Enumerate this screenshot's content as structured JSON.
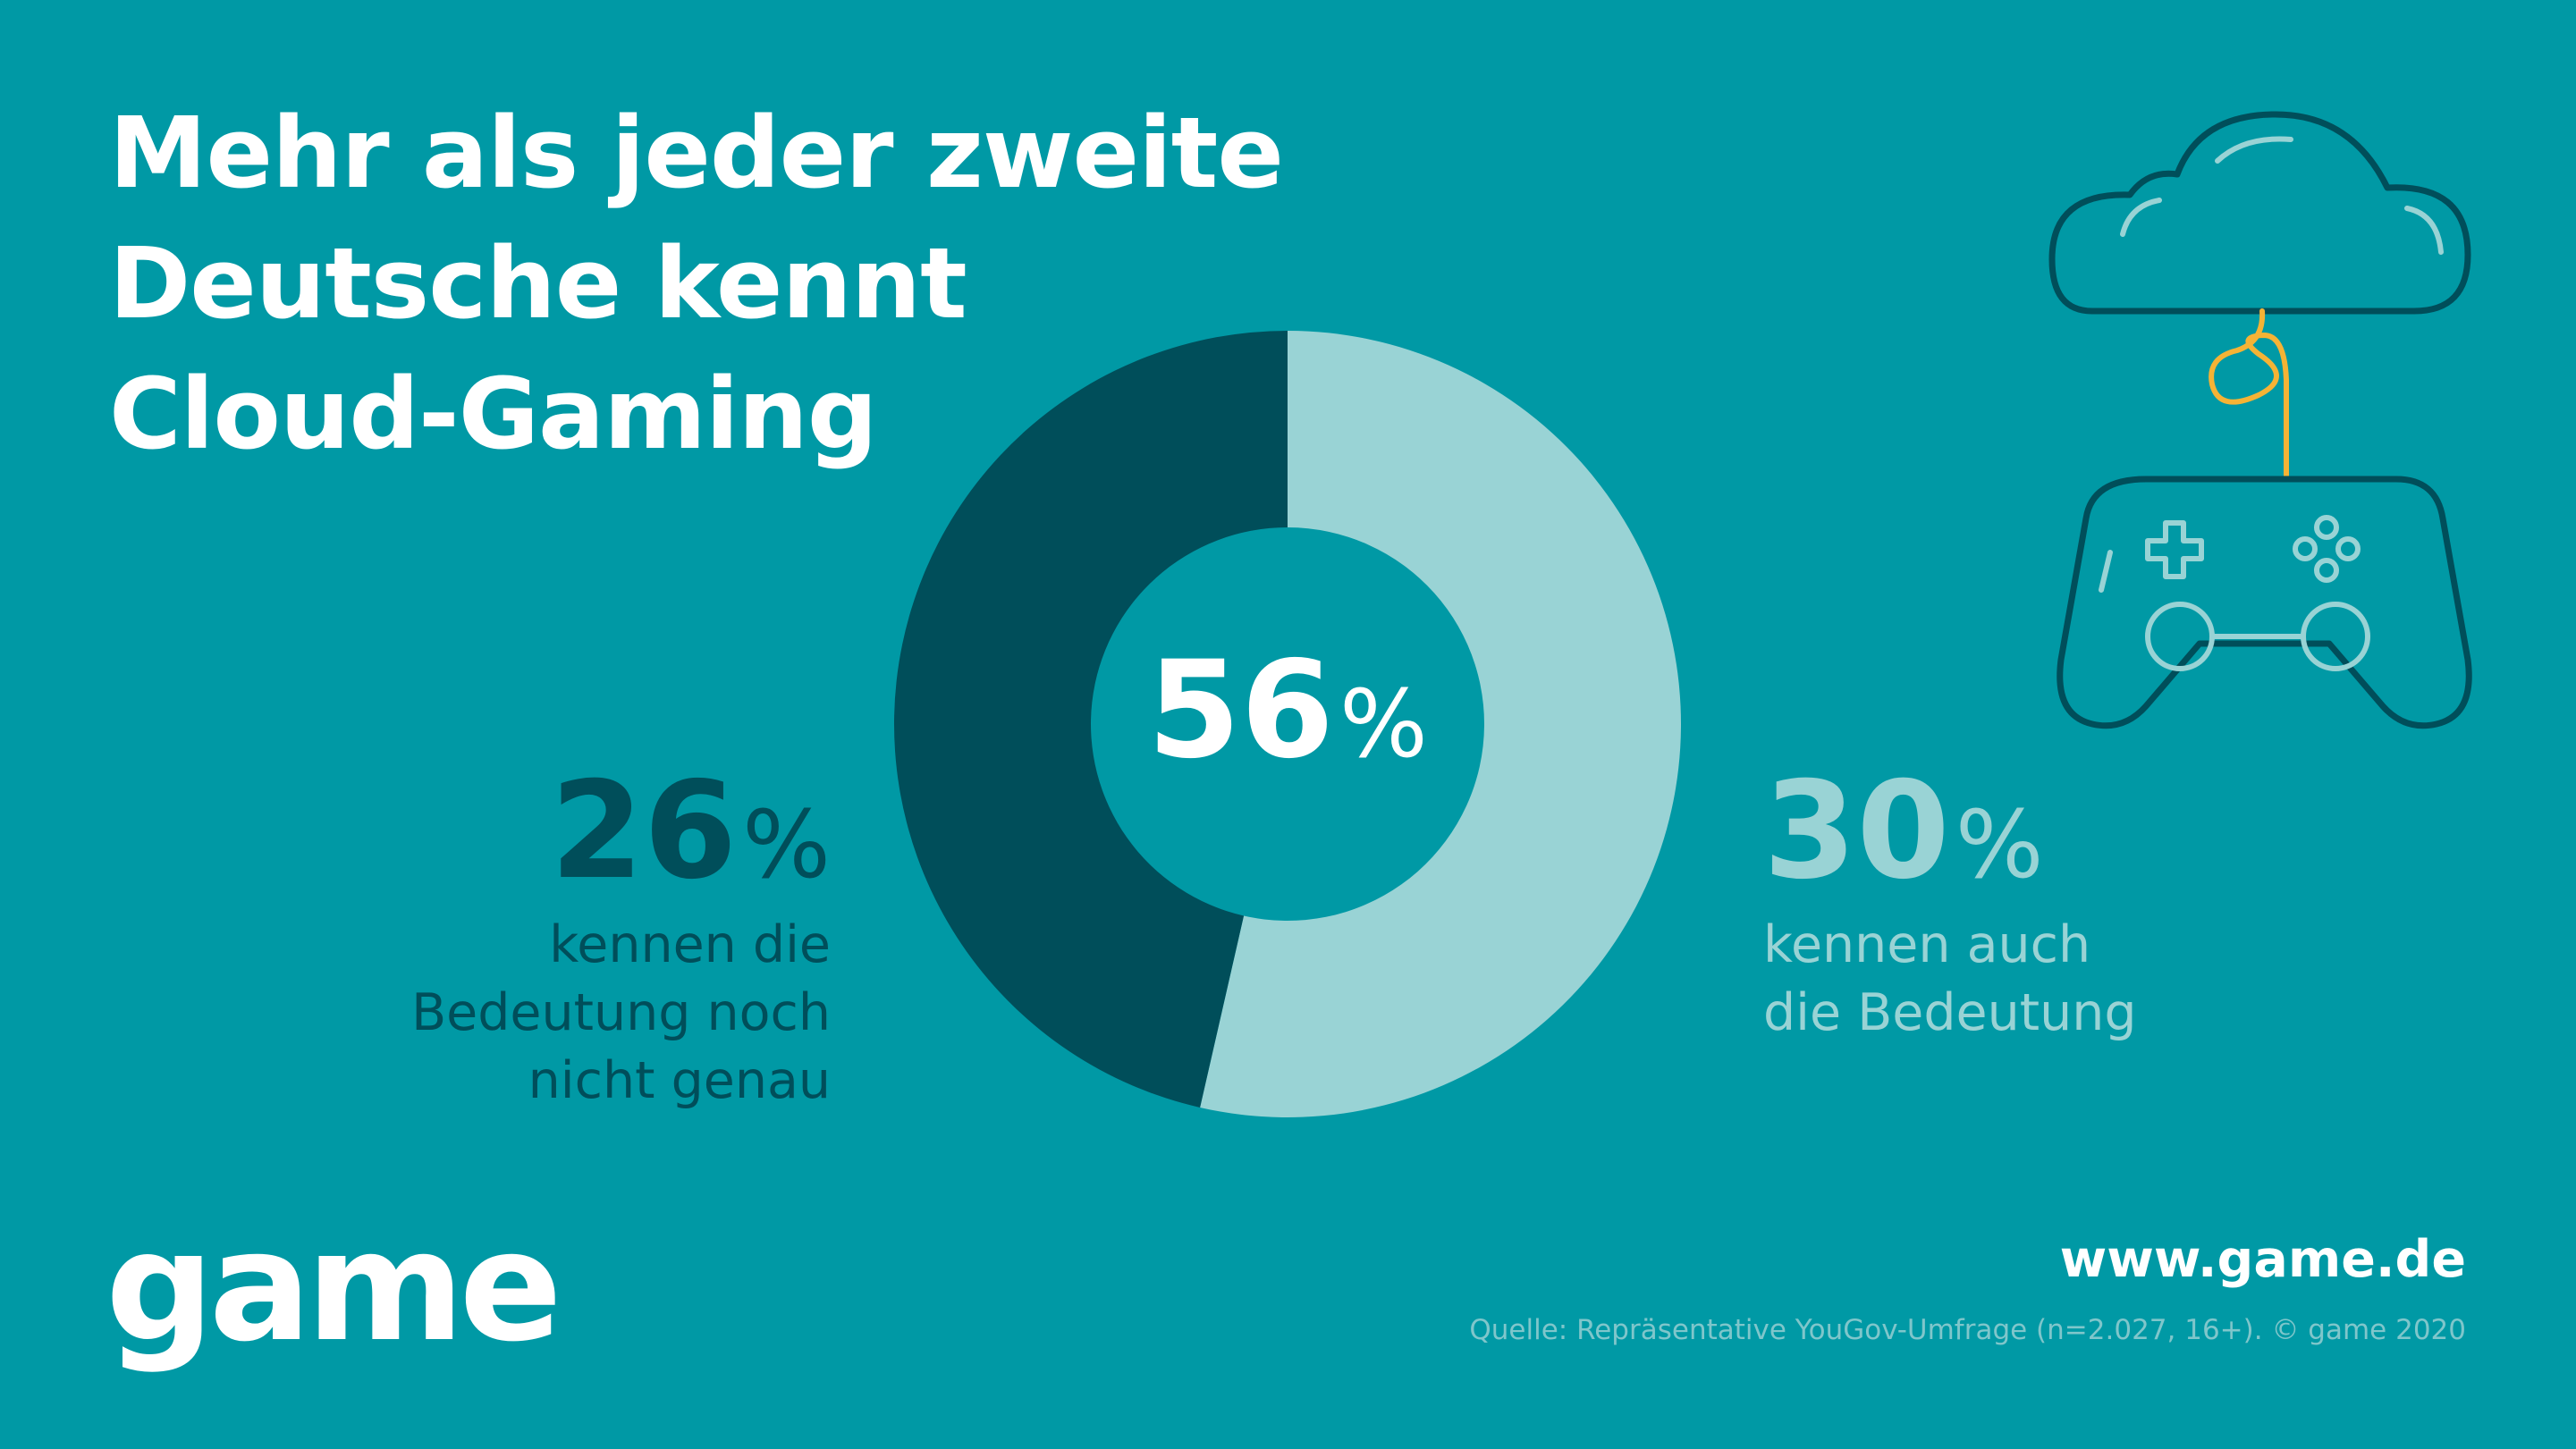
{
  "title_lines": [
    "Mehr als jeder zweite",
    "Deutsche kennt",
    "Cloud-Gaming"
  ],
  "center": {
    "value": "56",
    "unit": "%"
  },
  "left": {
    "value": "26",
    "unit": "%",
    "lines": [
      "kennen die",
      "Bedeutung noch",
      "nicht genau"
    ]
  },
  "right": {
    "value": "30",
    "unit": "%",
    "lines": [
      "kennen auch",
      "die Bedeutung"
    ]
  },
  "logo": "game",
  "url": "www.game.de",
  "source": "Quelle: Repräsentative YouGov-Umfrage (n=2.027, 16+). © game 2020",
  "colors": {
    "background": "#0099A5",
    "dark_segment": "#004E5A",
    "light_segment": "#99D3D5",
    "icon_outline": "#004E5A",
    "icon_detail": "#99D3D5",
    "icon_cable": "#F5B335"
  },
  "icon": "cloud-gaming-controller-icon",
  "chart_data": {
    "type": "pie",
    "donut": true,
    "total": 56,
    "slices": [
      {
        "label": "kennen auch die Bedeutung",
        "value": 30,
        "color": "#99D3D5"
      },
      {
        "label": "kennen die Bedeutung noch nicht genau",
        "value": 26,
        "color": "#004E5A"
      }
    ]
  }
}
